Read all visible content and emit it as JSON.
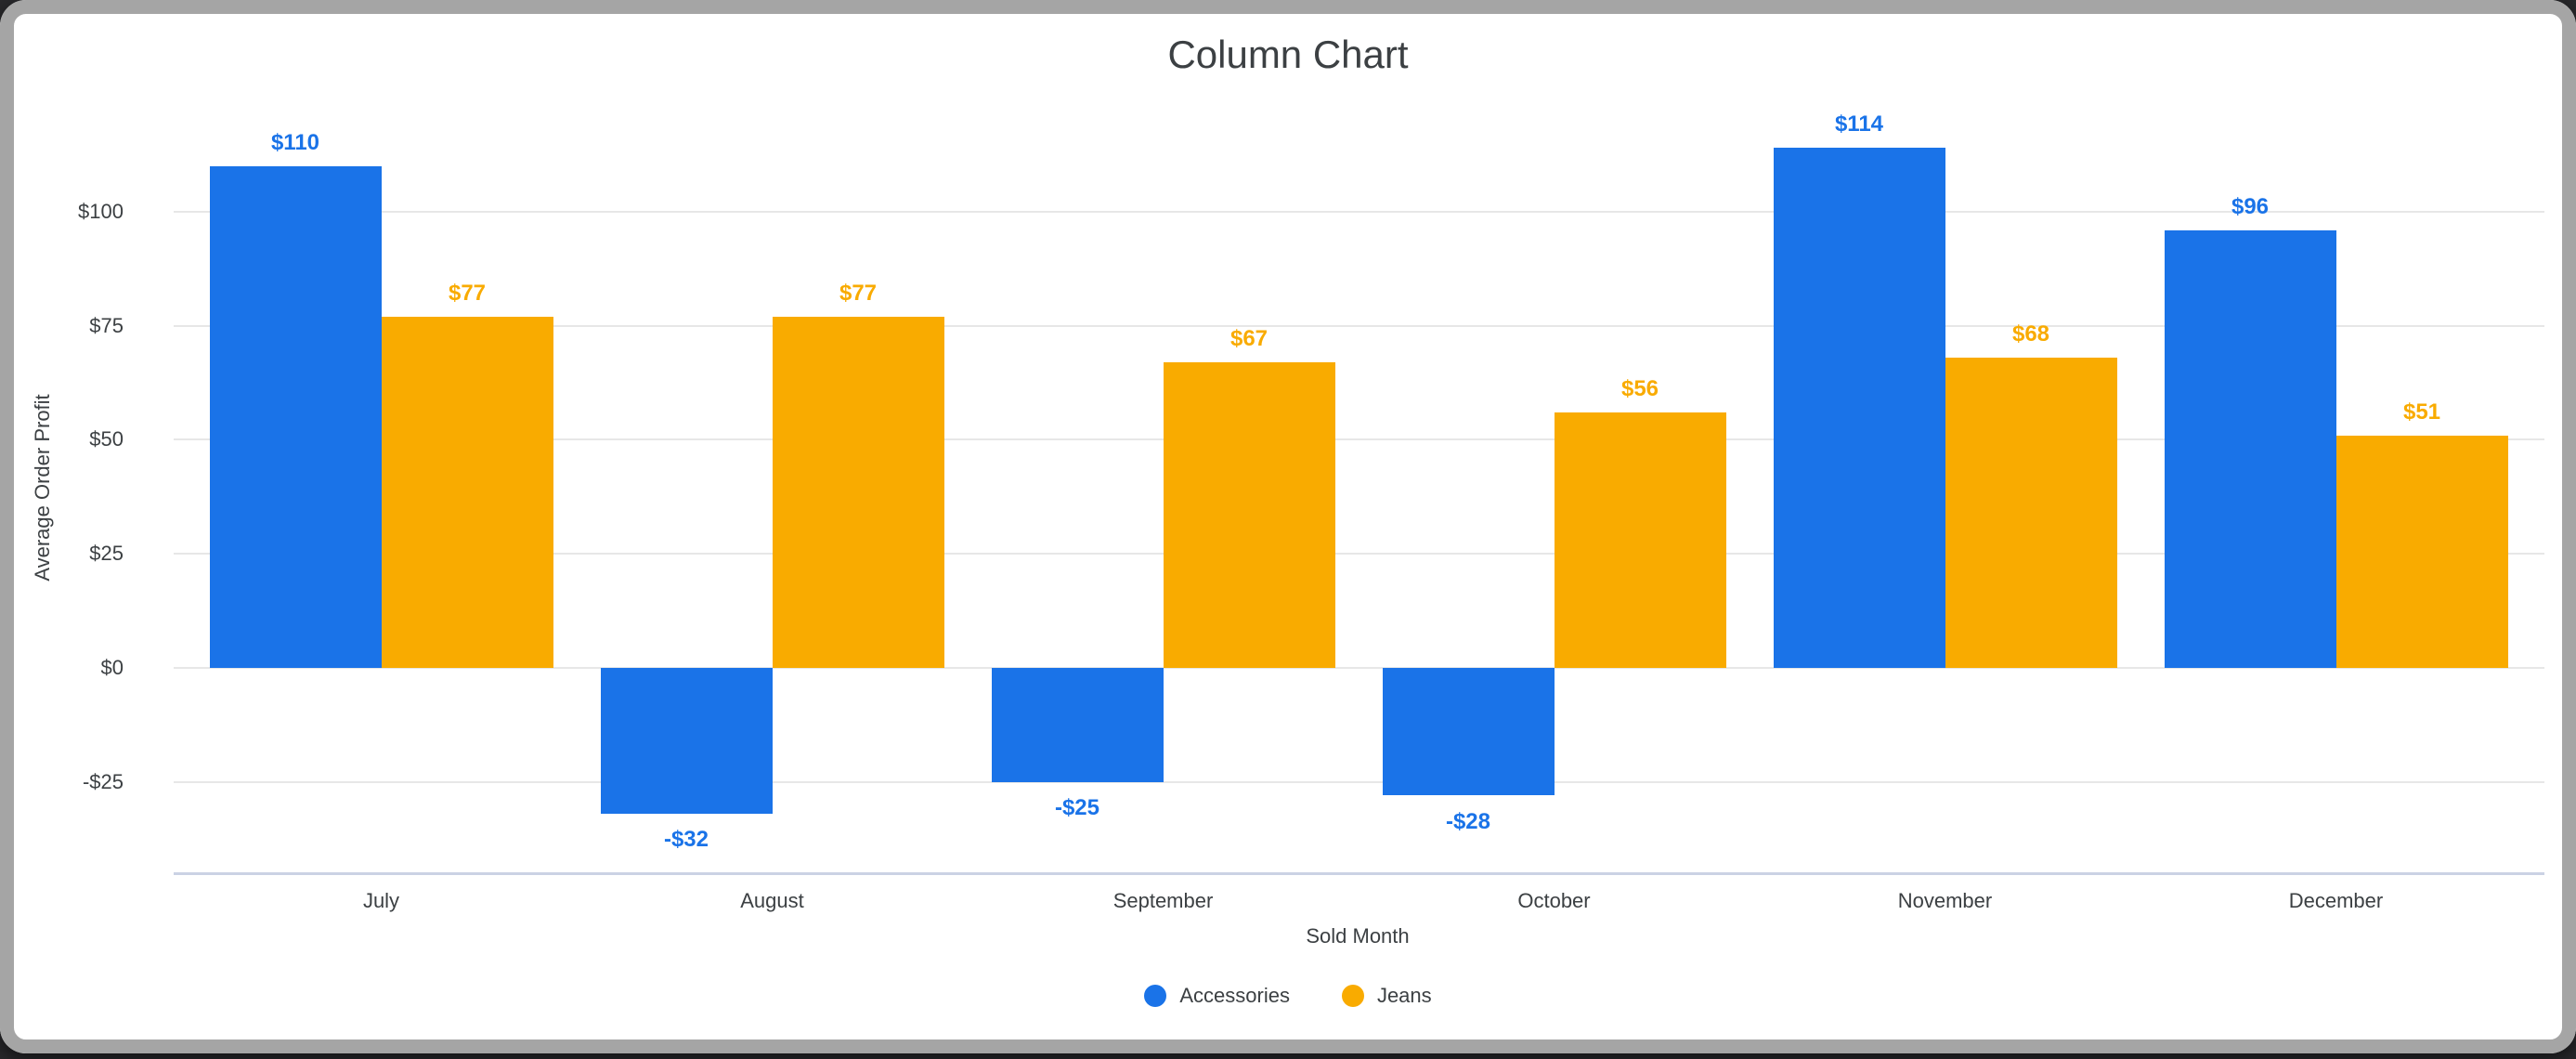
{
  "header": {
    "title": "Column Chart"
  },
  "chart_data": {
    "type": "bar",
    "title": "Column Chart",
    "categories": [
      "July",
      "August",
      "September",
      "October",
      "November",
      "December"
    ],
    "series": [
      {
        "name": "Accessories",
        "color": "#1a73e8",
        "values": [
          110,
          -32,
          -25,
          -28,
          114,
          96
        ],
        "labels": [
          "$110",
          "-$32",
          "-$25",
          "-$28",
          "$114",
          "$96"
        ]
      },
      {
        "name": "Jeans",
        "color": "#f9ab00",
        "values": [
          77,
          77,
          67,
          56,
          68,
          51
        ],
        "labels": [
          "$77",
          "$77",
          "$67",
          "$56",
          "$68",
          "$51"
        ]
      }
    ],
    "xlabel": "Sold Month",
    "ylabel": "Average Order Profit",
    "y_ticks": [
      {
        "value": -25,
        "label": "-$25"
      },
      {
        "value": 0,
        "label": "$0"
      },
      {
        "value": 25,
        "label": "$25"
      },
      {
        "value": 50,
        "label": "$50"
      },
      {
        "value": 75,
        "label": "$75"
      },
      {
        "value": 100,
        "label": "$100"
      }
    ],
    "ylim": [
      -45,
      124
    ],
    "grid": true,
    "legend_position": "bottom",
    "colors": {
      "accessories": "#1a73e8",
      "jeans": "#f9ab00",
      "gridline": "#e7e7e7",
      "axis_line": "#cbd2e4",
      "text": "#3c4043",
      "frame": "#a5a5a5",
      "card_background": "#ffffff"
    }
  }
}
